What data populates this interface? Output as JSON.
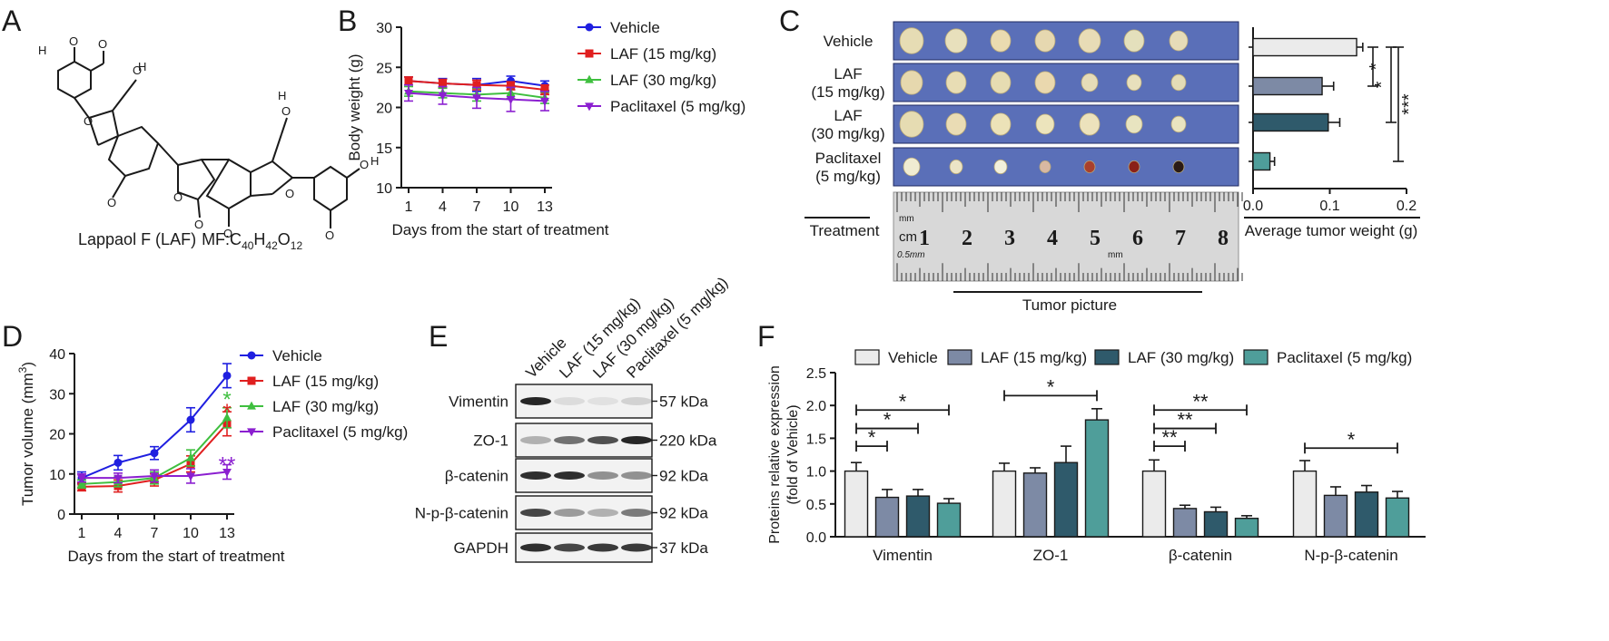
{
  "panels": {
    "A": {
      "letter": "A",
      "compound": "Lappaol F (LAF)",
      "formula_prefix": "MF:C",
      "formula_c": "40",
      "formula_h_sym": "H",
      "formula_h": "42",
      "formula_o_sym": "O",
      "formula_o": "12",
      "atom_o": "O",
      "atom_h": "H"
    },
    "B": {
      "letter": "B"
    },
    "C": {
      "letter": "C",
      "treatment_label": "Treatment",
      "tumor_picture_label": "Tumor picture",
      "groups": [
        "Vehicle",
        "LAF\n(15 mg/kg)",
        "LAF\n(30 mg/kg)",
        "Paclitaxel\n(5 mg/kg)"
      ],
      "ruler_unit_mm": "mm",
      "ruler_unit_cm": "cm",
      "ruler_half_mm": "0.5mm",
      "ruler_numbers": [
        "1",
        "2",
        "3",
        "4",
        "5",
        "6",
        "7",
        "8"
      ]
    },
    "D": {
      "letter": "D"
    },
    "E": {
      "letter": "E",
      "lanes": [
        "Vehicle",
        "LAF (15 mg/kg)",
        "LAF (30 mg/kg)",
        "Paclitaxel (5 mg/kg)"
      ],
      "proteins": [
        "Vimentin",
        "ZO-1",
        "β-catenin",
        "N-p-β-catenin",
        "GAPDH"
      ],
      "sizes": [
        "57 kDa",
        "220 kDa",
        "92 kDa",
        "92 kDa",
        "37 kDa"
      ],
      "band_intensity": [
        [
          0.95,
          0.1,
          0.08,
          0.15
        ],
        [
          0.3,
          0.6,
          0.75,
          0.95
        ],
        [
          0.9,
          0.9,
          0.45,
          0.45
        ],
        [
          0.8,
          0.4,
          0.3,
          0.55
        ],
        [
          0.9,
          0.8,
          0.85,
          0.85
        ]
      ]
    },
    "F": {
      "letter": "F"
    }
  },
  "chart_data": [
    {
      "id": "B",
      "type": "line",
      "x": [
        1,
        4,
        7,
        10,
        13
      ],
      "xlabel": "Days from the start of treatment",
      "ylabel": "Body weight (g)",
      "xticks": [
        "1",
        "4",
        "7",
        "10",
        "13"
      ],
      "yticks": [
        "10",
        "15",
        "20",
        "25",
        "30"
      ],
      "ylim": [
        10,
        30
      ],
      "legend": "top-right",
      "series": [
        {
          "name": "Vehicle",
          "color": "#1f1fe0",
          "marker": "circle",
          "values": [
            23.3,
            23.0,
            22.8,
            23.3,
            22.7
          ],
          "err": [
            0.5,
            0.6,
            0.8,
            0.6,
            0.6
          ]
        },
        {
          "name": "LAF (15 mg/kg)",
          "color": "#e01f1f",
          "marker": "square",
          "values": [
            23.3,
            23.0,
            22.8,
            22.7,
            22.2
          ],
          "err": [
            0.5,
            0.5,
            0.6,
            0.5,
            0.6
          ]
        },
        {
          "name": "LAF (30 mg/kg)",
          "color": "#3fbf3f",
          "marker": "triangle-up",
          "values": [
            22.0,
            21.8,
            21.6,
            21.8,
            21.2
          ],
          "err": [
            0.6,
            0.6,
            0.8,
            0.7,
            0.7
          ]
        },
        {
          "name": "Paclitaxel (5 mg/kg)",
          "color": "#8b1fd0",
          "marker": "triangle-down",
          "values": [
            21.8,
            21.5,
            21.2,
            21.0,
            20.8
          ],
          "err": [
            1.0,
            1.1,
            1.3,
            1.5,
            1.2
          ]
        }
      ]
    },
    {
      "id": "C",
      "type": "bar",
      "orientation": "horizontal",
      "categories": [
        "Vehicle",
        "LAF (15 mg/kg)",
        "LAF (30 mg/kg)",
        "Paclitaxel (5 mg/kg)"
      ],
      "values": [
        0.135,
        0.09,
        0.098,
        0.022
      ],
      "err": [
        0.008,
        0.015,
        0.015,
        0.006
      ],
      "colors": [
        "#ebebeb",
        "#7d8aa5",
        "#2f5a6b",
        "#4f9e9a"
      ],
      "xlabel": "Average tumor weight (g)",
      "xticks": [
        "0.0",
        "0.1",
        "0.2"
      ],
      "xlim": [
        0,
        0.2
      ],
      "significance": [
        {
          "from": 0,
          "to": 1,
          "label": "*"
        },
        {
          "from": 0,
          "to": 2,
          "label": "*"
        },
        {
          "from": 0,
          "to": 3,
          "label": "***"
        }
      ]
    },
    {
      "id": "D",
      "type": "line",
      "x": [
        1,
        4,
        7,
        10,
        13
      ],
      "xlabel": "Days from the start of treatment",
      "ylabel_main": "Tumor volume (mm",
      "ylabel_sup": "3",
      "ylabel_end": ")",
      "xticks": [
        "1",
        "4",
        "7",
        "10",
        "13"
      ],
      "yticks": [
        "0",
        "10",
        "20",
        "30",
        "40"
      ],
      "ylim": [
        0,
        40
      ],
      "legend": "top-right",
      "series": [
        {
          "name": "Vehicle",
          "color": "#1f1fe0",
          "marker": "circle",
          "values": [
            9.0,
            12.8,
            15.2,
            23.5,
            34.5
          ],
          "err": [
            1.5,
            1.8,
            1.6,
            3.0,
            3.0
          ]
        },
        {
          "name": "LAF (15 mg/kg)",
          "color": "#e01f1f",
          "marker": "square",
          "values": [
            6.8,
            7.0,
            8.5,
            12.5,
            22.5
          ],
          "err": [
            1.0,
            1.5,
            1.5,
            2.0,
            3.0
          ]
        },
        {
          "name": "LAF (30 mg/kg)",
          "color": "#3fbf3f",
          "marker": "triangle-up",
          "values": [
            7.5,
            8.0,
            9.0,
            14.0,
            24.0
          ],
          "err": [
            1.0,
            1.2,
            1.5,
            2.0,
            2.5
          ]
        },
        {
          "name": "Paclitaxel (5 mg/kg)",
          "color": "#8b1fd0",
          "marker": "triangle-down",
          "values": [
            9.0,
            9.0,
            9.5,
            9.5,
            10.5
          ],
          "err": [
            1.0,
            1.2,
            1.5,
            1.8,
            1.8
          ]
        }
      ],
      "annotations": [
        {
          "x": 13,
          "y": 26.0,
          "label": "*",
          "color": "#e01f1f"
        },
        {
          "x": 13,
          "y": 29.0,
          "label": "*",
          "color": "#3fbf3f"
        },
        {
          "x": 13,
          "y": 12.8,
          "label": "**",
          "color": "#8b1fd0"
        }
      ]
    },
    {
      "id": "F",
      "type": "bar",
      "categories": [
        "Vimentin",
        "ZO-1",
        "β-catenin",
        "N-p-β-catenin"
      ],
      "ylabel_line1": "Proteins relative expression",
      "ylabel_line2": "(fold of Vehicle)",
      "yticks": [
        "0.0",
        "0.5",
        "1.0",
        "1.5",
        "2.0",
        "2.5"
      ],
      "ylim": [
        0,
        2.5
      ],
      "legend": "top",
      "series": [
        {
          "name": "Vehicle",
          "color": "#ebebeb",
          "values": [
            1.0,
            1.0,
            1.0,
            1.0
          ],
          "err": [
            0.13,
            0.12,
            0.17,
            0.16
          ]
        },
        {
          "name": "LAF (15 mg/kg)",
          "color": "#7d8aa5",
          "values": [
            0.6,
            0.97,
            0.43,
            0.63
          ],
          "err": [
            0.12,
            0.08,
            0.05,
            0.13
          ]
        },
        {
          "name": "LAF (30 mg/kg)",
          "color": "#2f5a6b",
          "values": [
            0.62,
            1.13,
            0.38,
            0.68
          ],
          "err": [
            0.1,
            0.25,
            0.07,
            0.1
          ]
        },
        {
          "name": "Paclitaxel (5 mg/kg)",
          "color": "#4f9e9a",
          "values": [
            0.51,
            1.78,
            0.28,
            0.59
          ],
          "err": [
            0.07,
            0.17,
            0.04,
            0.1
          ]
        }
      ],
      "significance": [
        {
          "category": 0,
          "from": 0,
          "to": 1,
          "y": 1.38,
          "label": "*"
        },
        {
          "category": 0,
          "from": 0,
          "to": 2,
          "y": 1.65,
          "label": "*"
        },
        {
          "category": 0,
          "from": 0,
          "to": 3,
          "y": 1.93,
          "label": "*"
        },
        {
          "category": 1,
          "from": 0,
          "to": 3,
          "y": 2.15,
          "label": "*"
        },
        {
          "category": 2,
          "from": 0,
          "to": 1,
          "y": 1.38,
          "label": "**"
        },
        {
          "category": 2,
          "from": 0,
          "to": 2,
          "y": 1.65,
          "label": "**"
        },
        {
          "category": 2,
          "from": 0,
          "to": 3,
          "y": 1.93,
          "label": "**"
        },
        {
          "category": 3,
          "from": 0,
          "to": 3,
          "y": 1.35,
          "label": "*"
        }
      ]
    }
  ]
}
